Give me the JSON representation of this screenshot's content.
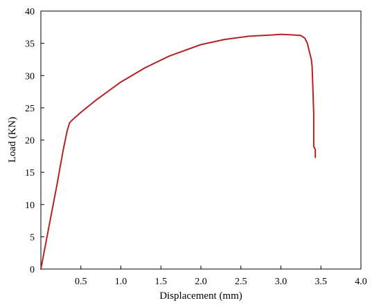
{
  "chart_data": {
    "type": "line",
    "title": "",
    "xlabel": "Displacement (mm)",
    "ylabel": "Load (KN)",
    "xlim": [
      0,
      4.0
    ],
    "ylim": [
      0,
      40
    ],
    "xticks": [
      0.5,
      1.0,
      1.5,
      2.0,
      2.5,
      3.0,
      3.5,
      4.0
    ],
    "xtick_labels": [
      "0.5",
      "1.0",
      "1.5",
      "2.0",
      "2.5",
      "3.0",
      "3.5",
      "4.0"
    ],
    "yticks": [
      0,
      5,
      10,
      15,
      20,
      25,
      30,
      35,
      40
    ],
    "ytick_labels": [
      "0",
      "5",
      "10",
      "15",
      "20",
      "25",
      "30",
      "35",
      "40"
    ],
    "grid": false,
    "legend": "none",
    "series": [
      {
        "color": "#b22222",
        "x": [
          0,
          0.1,
          0.2,
          0.28,
          0.33,
          0.36,
          0.4,
          0.5,
          0.7,
          1.0,
          1.3,
          1.6,
          2.0,
          2.3,
          2.6,
          2.9,
          3.0,
          3.15,
          3.25,
          3.3,
          3.33,
          3.36,
          3.38,
          3.39,
          3.4,
          3.41,
          3.41,
          3.42,
          3.43,
          3.43
        ],
        "y": [
          0,
          6.5,
          13,
          18.5,
          21.5,
          22.7,
          23.2,
          24.3,
          26.3,
          29.0,
          31.2,
          33.0,
          34.8,
          35.6,
          36.1,
          36.3,
          36.4,
          36.3,
          36.2,
          35.8,
          35.0,
          33.5,
          32.5,
          31.5,
          28.0,
          24.0,
          19.0,
          18.8,
          18.5,
          17.3
        ]
      }
    ]
  }
}
